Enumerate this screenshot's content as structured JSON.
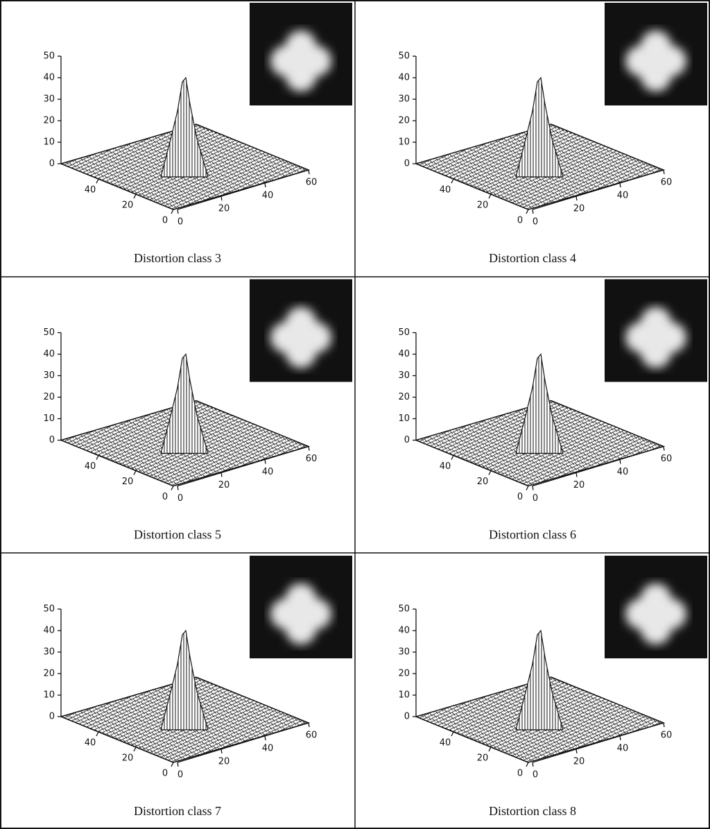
{
  "chart_data": [
    {
      "type": "surface3d",
      "title": "Distortion class 3",
      "xlim": [
        0,
        60
      ],
      "ylim": [
        0,
        60
      ],
      "zlim": [
        0,
        50
      ],
      "xticks": [
        0,
        20,
        40,
        60
      ],
      "yticks": [
        0,
        20,
        40
      ],
      "zticks": [
        0,
        10,
        20,
        30,
        40,
        50
      ]
    },
    {
      "type": "surface3d",
      "title": "Distortion class 4",
      "xlim": [
        0,
        60
      ],
      "ylim": [
        0,
        60
      ],
      "zlim": [
        0,
        50
      ],
      "xticks": [
        0,
        20,
        40,
        60
      ],
      "yticks": [
        0,
        20,
        40
      ],
      "zticks": [
        0,
        10,
        20,
        30,
        40,
        50
      ]
    },
    {
      "type": "surface3d",
      "title": "Distortion class 5",
      "xlim": [
        0,
        60
      ],
      "ylim": [
        0,
        60
      ],
      "zlim": [
        0,
        50
      ],
      "xticks": [
        0,
        20,
        40,
        60
      ],
      "yticks": [
        0,
        20,
        40
      ],
      "zticks": [
        0,
        10,
        20,
        30,
        40,
        50
      ]
    },
    {
      "type": "surface3d",
      "title": "Distortion class 6",
      "xlim": [
        0,
        60
      ],
      "ylim": [
        0,
        60
      ],
      "zlim": [
        0,
        50
      ],
      "xticks": [
        0,
        20,
        40,
        60
      ],
      "yticks": [
        0,
        20,
        40
      ],
      "zticks": [
        0,
        10,
        20,
        30,
        40,
        50
      ]
    },
    {
      "type": "surface3d",
      "title": "Distortion class 7",
      "xlim": [
        0,
        60
      ],
      "ylim": [
        0,
        60
      ],
      "zlim": [
        0,
        50
      ],
      "xticks": [
        0,
        20,
        40,
        60
      ],
      "yticks": [
        0,
        20,
        40
      ],
      "zticks": [
        0,
        10,
        20,
        30,
        40,
        50
      ]
    },
    {
      "type": "surface3d",
      "title": "Distortion class 8",
      "xlim": [
        0,
        60
      ],
      "ylim": [
        0,
        60
      ],
      "zlim": [
        0,
        50
      ],
      "xticks": [
        0,
        20,
        40,
        60
      ],
      "yticks": [
        0,
        20,
        40
      ],
      "zticks": [
        0,
        10,
        20,
        30,
        40,
        50
      ]
    }
  ]
}
